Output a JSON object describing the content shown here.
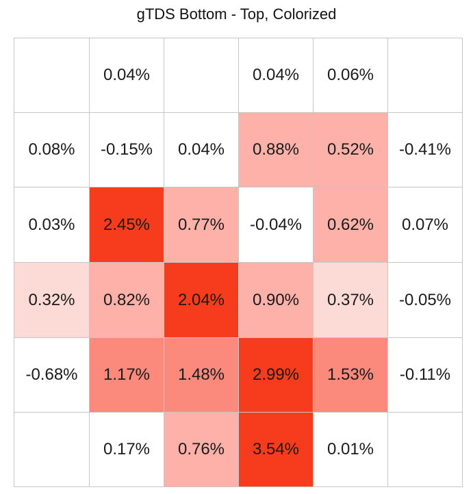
{
  "chart_data": {
    "type": "heatmap",
    "title": "gTDS Bottom - Top, Colorized",
    "rows": [
      [
        "",
        "0.04%",
        "",
        "0.04%",
        "0.06%",
        ""
      ],
      [
        "0.08%",
        "-0.15%",
        "0.04%",
        "0.88%",
        "0.52%",
        "-0.41%"
      ],
      [
        "0.03%",
        "2.45%",
        "0.77%",
        "-0.04%",
        "0.62%",
        "0.07%"
      ],
      [
        "0.32%",
        "0.82%",
        "2.04%",
        "0.90%",
        "0.37%",
        "-0.05%"
      ],
      [
        "-0.68%",
        "1.17%",
        "1.48%",
        "2.99%",
        "1.53%",
        "-0.11%"
      ],
      [
        "",
        "0.17%",
        "0.76%",
        "3.54%",
        "0.01%",
        ""
      ]
    ],
    "fills": [
      [
        "#ffffff",
        "#ffffff",
        "#ffffff",
        "#ffffff",
        "#ffffff",
        "#ffffff"
      ],
      [
        "#ffffff",
        "#ffffff",
        "#ffffff",
        "#fdb1a8",
        "#fdb1a8",
        "#ffffff"
      ],
      [
        "#ffffff",
        "#f63c1d",
        "#fdb1a8",
        "#ffffff",
        "#fdb1a8",
        "#ffffff"
      ],
      [
        "#fcdad6",
        "#fdb1a8",
        "#f63c1d",
        "#fdb1a8",
        "#fcdad6",
        "#ffffff"
      ],
      [
        "#ffffff",
        "#fb8a7d",
        "#fb8a7d",
        "#f63c1d",
        "#fb8a7d",
        "#ffffff"
      ],
      [
        "#ffffff",
        "#ffffff",
        "#fdb1a8",
        "#f63c1d",
        "#ffffff",
        "#ffffff"
      ]
    ]
  }
}
